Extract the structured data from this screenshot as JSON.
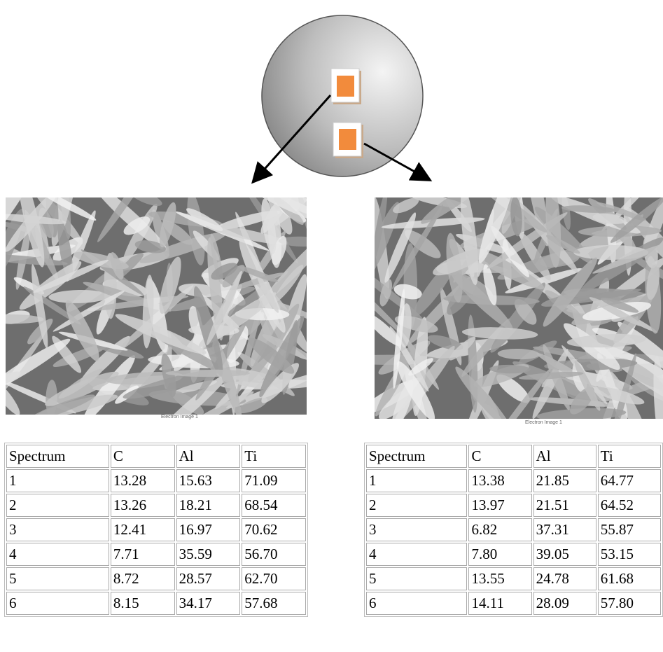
{
  "images": [
    {
      "caption": "Electron Image 1"
    },
    {
      "caption": "Electron Image 1"
    }
  ],
  "tables": [
    {
      "header": [
        "Spectrum",
        "C",
        "Al",
        "Ti"
      ],
      "rows": [
        [
          "1",
          "13.28",
          "15.63",
          "71.09"
        ],
        [
          "2",
          "13.26",
          "18.21",
          "68.54"
        ],
        [
          "3",
          "12.41",
          "16.97",
          "70.62"
        ],
        [
          "4",
          "7.71",
          "35.59",
          "56.70"
        ],
        [
          "5",
          "8.72",
          "28.57",
          "62.70"
        ],
        [
          "6",
          "8.15",
          "34.17",
          "57.68"
        ]
      ]
    },
    {
      "header": [
        "Spectrum",
        "C",
        "Al",
        "Ti"
      ],
      "rows": [
        [
          "1",
          "13.38",
          "21.85",
          "64.77"
        ],
        [
          "2",
          "13.97",
          "21.51",
          "64.52"
        ],
        [
          "3",
          "6.82",
          "37.31",
          "55.87"
        ],
        [
          "4",
          "7.80",
          "39.05",
          "53.15"
        ],
        [
          "5",
          "13.55",
          "24.78",
          "61.68"
        ],
        [
          "6",
          "14.11",
          "28.09",
          "57.80"
        ]
      ]
    }
  ]
}
